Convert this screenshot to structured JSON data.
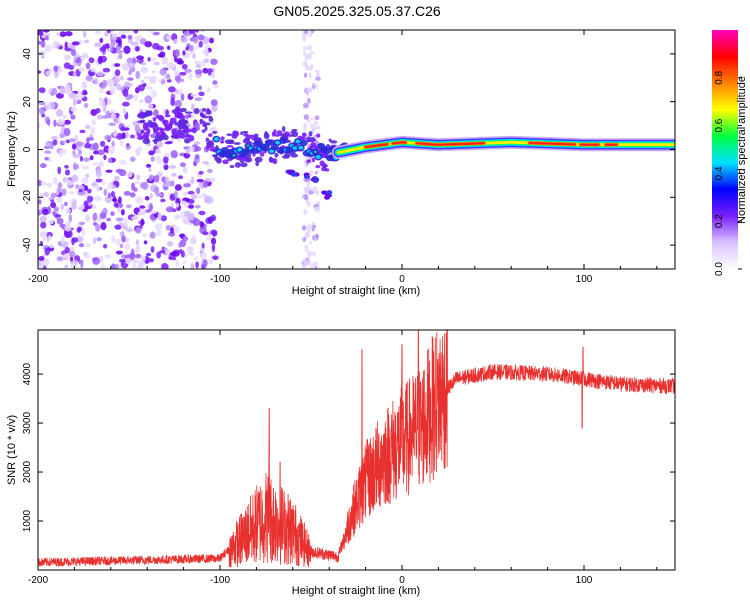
{
  "figure_title": "GN05.2025.325.05.37.C26",
  "chart_data": [
    {
      "type": "heatmap",
      "title": "",
      "xlabel": "Height of straight line (km)",
      "ylabel": "Frequency (Hz)",
      "xlim": [
        -200,
        150
      ],
      "ylim": [
        -50,
        50
      ],
      "xticks": [
        -200,
        -100,
        0,
        100
      ],
      "yticks": [
        -40,
        -20,
        0,
        20,
        40
      ],
      "colorbar": {
        "label": "Normalized spectral amplitude",
        "range": [
          0,
          1
        ],
        "ticks": [
          "0.0",
          "0.2",
          "0.4",
          "0.6",
          "0.8"
        ],
        "colors": [
          "#ffffff",
          "#d9c2ff",
          "#7a1fff",
          "#0000ff",
          "#00e0ff",
          "#00ff40",
          "#ffff00",
          "#ff8000",
          "#ff0000",
          "#ff00c0"
        ]
      },
      "features": {
        "noise_region_x": [
          -200,
          -102
        ],
        "signal_trace": [
          {
            "x": -140,
            "f": 9
          },
          {
            "x": -120,
            "f": 10
          },
          {
            "x": -108,
            "f": 12
          },
          {
            "x": -100,
            "f": -1
          },
          {
            "x": -80,
            "f": 1
          },
          {
            "x": -60,
            "f": 2
          },
          {
            "x": -40,
            "f": -2
          },
          {
            "x": -20,
            "f": 1
          },
          {
            "x": 0,
            "f": 3
          },
          {
            "x": 20,
            "f": 2
          },
          {
            "x": 60,
            "f": 3
          },
          {
            "x": 100,
            "f": 2
          },
          {
            "x": 150,
            "f": 2
          }
        ],
        "side_branch": [
          {
            "x": -60,
            "f": -10
          },
          {
            "x": -50,
            "f": -12
          },
          {
            "x": -40,
            "f": -19
          }
        ]
      }
    },
    {
      "type": "line",
      "title": "",
      "xlabel": "Height of straight line (km)",
      "ylabel": "SNR (10 * v/v)",
      "xlim": [
        -200,
        150
      ],
      "ylim": [
        0,
        4900
      ],
      "xticks": [
        -200,
        -100,
        0,
        100
      ],
      "yticks": [
        1000,
        2000,
        3000,
        4000
      ],
      "color": "#e8302e",
      "series_envelope": [
        {
          "x": -200,
          "y": 120
        },
        {
          "x": -100,
          "y": 200
        },
        {
          "x": -92,
          "y": 500
        },
        {
          "x": -75,
          "y": 1100
        },
        {
          "x": -60,
          "y": 800
        },
        {
          "x": -50,
          "y": 350
        },
        {
          "x": -35,
          "y": 250
        },
        {
          "x": -28,
          "y": 1100
        },
        {
          "x": -20,
          "y": 1800
        },
        {
          "x": -10,
          "y": 2300
        },
        {
          "x": 0,
          "y": 2600
        },
        {
          "x": 10,
          "y": 2900
        },
        {
          "x": 20,
          "y": 3500
        },
        {
          "x": 30,
          "y": 3900
        },
        {
          "x": 50,
          "y": 4050
        },
        {
          "x": 80,
          "y": 4000
        },
        {
          "x": 100,
          "y": 3900
        },
        {
          "x": 120,
          "y": 3800
        },
        {
          "x": 150,
          "y": 3750
        }
      ],
      "spikes": [
        {
          "x": -73,
          "y": 3300
        },
        {
          "x": -67,
          "y": 2200
        },
        {
          "x": -22,
          "y": 4500
        },
        {
          "x": 0,
          "y": 4600
        },
        {
          "x": 9,
          "y": 4900
        },
        {
          "x": 99,
          "y": 2900
        },
        {
          "x": 99.5,
          "y": 4550
        }
      ]
    }
  ]
}
